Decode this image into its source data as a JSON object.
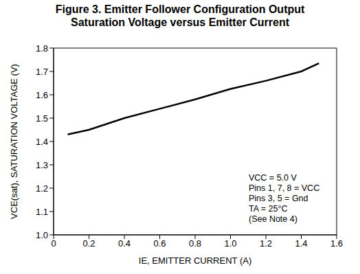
{
  "chart_data": {
    "type": "line",
    "title": "Figure 3. Emitter Follower Configuration Output\nSaturation Voltage versus Emitter Current",
    "x_label": "IE, EMITTER CURRENT (A)",
    "y_label": "VCE(sat), SATURATION VOLTAGE (V)",
    "annotations": [
      "VCC = 5.0 V",
      "Pins 1, 7, 8 = VCC",
      "Pins 3, 5 = Gnd",
      "TA = 25°C",
      "(See Note 4)"
    ],
    "x": [
      0.08,
      0.2,
      0.4,
      0.6,
      0.8,
      1.0,
      1.2,
      1.4,
      1.5
    ],
    "values": [
      1.43,
      1.45,
      1.5,
      1.54,
      1.58,
      1.625,
      1.66,
      1.7,
      1.735
    ],
    "color": "#000000",
    "xlim": [
      0,
      1.6
    ],
    "ylim": [
      1,
      1.8
    ],
    "xticks": [
      0,
      0.2,
      0.4,
      0.6,
      0.8,
      {
        "value": 1,
        "label": "1.0"
      },
      1.2,
      1.4,
      1.6
    ],
    "yticks": [
      {
        "value": 1,
        "label": "1.0"
      },
      1.1,
      1.2,
      1.3,
      1.4,
      1.5,
      1.6,
      1.7,
      1.8
    ],
    "grid": false
  }
}
